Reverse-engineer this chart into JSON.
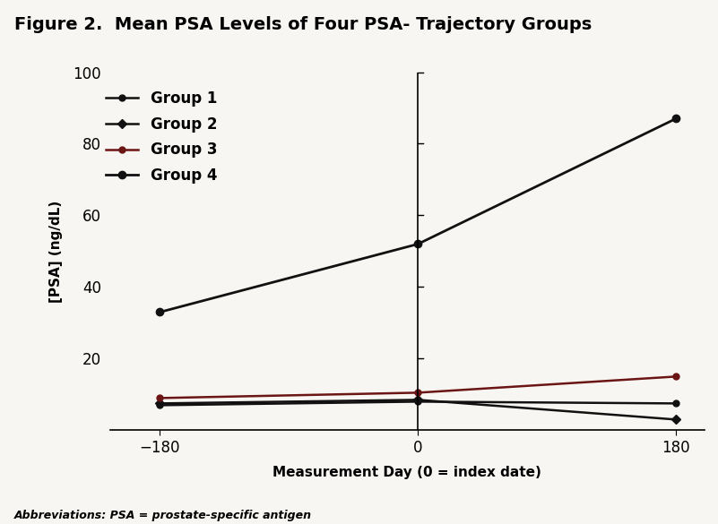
{
  "title": "Figure 2.  Mean PSA Levels of Four PSA- Trajectory Groups",
  "xlabel": "Measurement Day (0 = index date)",
  "ylabel": "[PSA] (ng/dL)",
  "footnote": "Abbreviations: PSA = prostate-specific antigen",
  "x": [
    -180,
    0,
    180
  ],
  "groups": [
    {
      "label": "Group 1",
      "values": [
        7.0,
        8.0,
        7.5
      ],
      "color": "#111111",
      "marker": "o",
      "linewidth": 1.8,
      "markersize": 5
    },
    {
      "label": "Group 2",
      "values": [
        7.5,
        8.5,
        3.0
      ],
      "color": "#111111",
      "marker": "D",
      "linewidth": 1.8,
      "markersize": 5
    },
    {
      "label": "Group 3",
      "values": [
        9.0,
        10.5,
        15.0
      ],
      "color": "#6B1515",
      "marker": "o",
      "linewidth": 1.8,
      "markersize": 5
    },
    {
      "label": "Group 4",
      "values": [
        33.0,
        52.0,
        87.0
      ],
      "color": "#111111",
      "marker": "o",
      "linewidth": 2.0,
      "markersize": 6
    }
  ],
  "ylim": [
    0,
    100
  ],
  "yticks": [
    20,
    40,
    60,
    80,
    100
  ],
  "xticks": [
    -180,
    0,
    180
  ],
  "background_color": "#F8F6F2",
  "title_fontsize": 14,
  "axis_label_fontsize": 11,
  "tick_fontsize": 12,
  "legend_fontsize": 12,
  "footnote_fontsize": 9
}
